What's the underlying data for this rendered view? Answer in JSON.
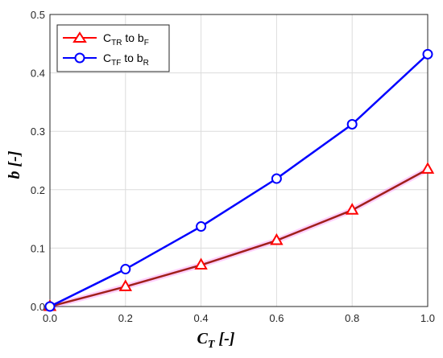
{
  "chart_data": {
    "type": "line",
    "xlabel": {
      "main": "C",
      "sub": "T",
      "unit": " [-]"
    },
    "ylabel": "b [-]",
    "xlim": [
      0,
      1
    ],
    "ylim": [
      0,
      0.5
    ],
    "x_ticks": [
      "0.0",
      "0.2",
      "0.4",
      "0.6",
      "0.8",
      "1.0"
    ],
    "y_ticks": [
      "0.0",
      "0.1",
      "0.2",
      "0.3",
      "0.4",
      "0.5"
    ],
    "grid": true,
    "legend_position": "top-left",
    "x": [
      0,
      0.2,
      0.4,
      0.6,
      0.8,
      1.0
    ],
    "series": [
      {
        "legend": {
          "a": "C",
          "a_sub": "TR",
          "mid": " to b",
          "b_sub": "F"
        },
        "values": [
          0,
          0.034,
          0.071,
          0.113,
          0.165,
          0.235
        ],
        "color": "#a0201a",
        "marker_color": "#ff0000",
        "marker": "triangle"
      },
      {
        "legend": {
          "a": "C",
          "a_sub": "TF",
          "mid": " to b",
          "b_sub": "R"
        },
        "values": [
          0,
          0.064,
          0.137,
          0.219,
          0.312,
          0.432
        ],
        "color": "#0000ff",
        "marker_color": "#0000ff",
        "marker": "circle"
      }
    ]
  }
}
